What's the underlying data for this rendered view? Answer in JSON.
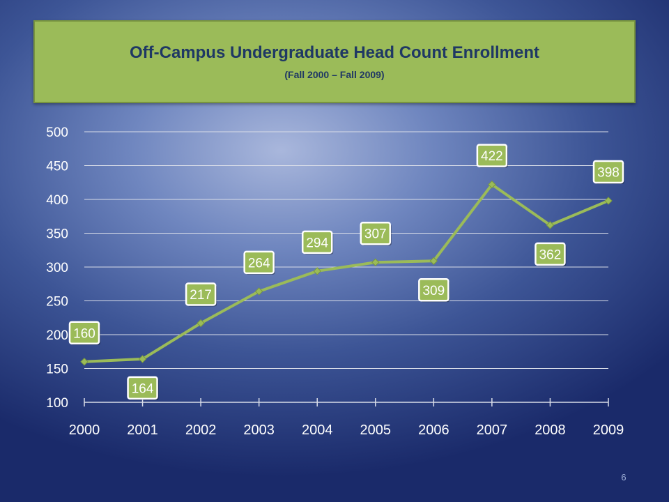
{
  "slide": {
    "page_number": "6"
  },
  "chart_data": {
    "type": "line",
    "title": "Off-Campus Undergraduate Head Count Enrollment",
    "subtitle": "(Fall 2000 – Fall 2009)",
    "xlabel": "",
    "ylabel": "",
    "categories": [
      "2000",
      "2001",
      "2002",
      "2003",
      "2004",
      "2005",
      "2006",
      "2007",
      "2008",
      "2009"
    ],
    "series": [
      {
        "values": [
          160,
          164,
          217,
          264,
          294,
          307,
          309,
          422,
          362,
          398
        ]
      }
    ],
    "ylim": [
      100,
      500
    ],
    "yticks": [
      100,
      150,
      200,
      250,
      300,
      350,
      400,
      450,
      500
    ],
    "grid": true,
    "legend": "none",
    "colors": {
      "line": "#9bbb59",
      "label_fill": "#9bbb59",
      "label_border": "#ffffff",
      "gridline": "#d9dde8",
      "text": "#ffffff"
    }
  }
}
